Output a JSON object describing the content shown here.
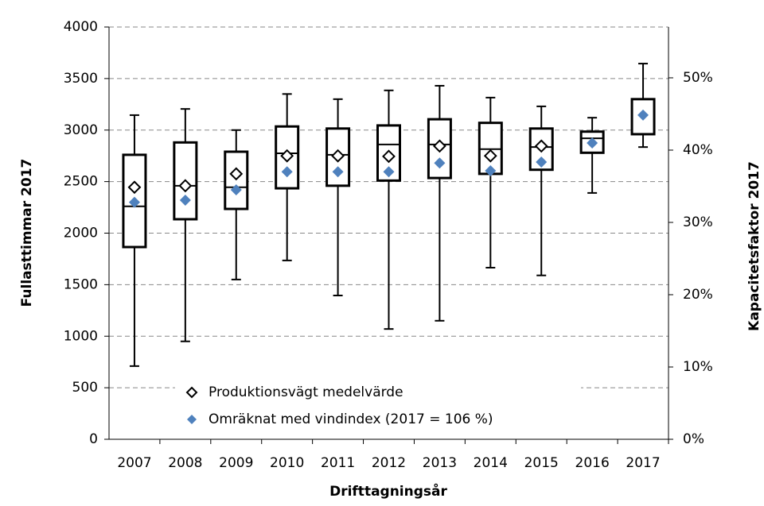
{
  "chart_data": {
    "type": "box",
    "x_label": "Drifttagningsår",
    "y_label": "Fullasttimmar 2017",
    "y2_label": "Kapacitetsfaktor  2017",
    "categories": [
      "2007",
      "2008",
      "2009",
      "2010",
      "2011",
      "2012",
      "2013",
      "2014",
      "2015",
      "2016",
      "2017"
    ],
    "boxes": {
      "low": [
        710,
        950,
        1550,
        1735,
        1395,
        1070,
        1150,
        1665,
        1590,
        2390,
        2835
      ],
      "q1": [
        1865,
        2135,
        2235,
        2435,
        2460,
        2510,
        2535,
        2575,
        2615,
        2780,
        2960
      ],
      "median": [
        2260,
        2460,
        2445,
        2775,
        2760,
        2860,
        2860,
        2815,
        2835,
        2920,
        null
      ],
      "q3": [
        2760,
        2880,
        2790,
        3035,
        3015,
        3045,
        3105,
        3070,
        3015,
        2985,
        3300
      ],
      "high": [
        3145,
        3205,
        3000,
        3350,
        3300,
        3385,
        3430,
        3315,
        3230,
        3120,
        3645
      ]
    },
    "series": [
      {
        "name": "Produktionsvägt medelvärde",
        "marker": "open-diamond",
        "color": "#000000",
        "values": [
          2445,
          2460,
          2575,
          2750,
          2750,
          2745,
          2845,
          2750,
          2845,
          null,
          null
        ]
      },
      {
        "name": "Omräknat med vindindex (2017 = 106 %)",
        "marker": "diamond",
        "color": "#4f81bd",
        "values": [
          2300,
          2320,
          2420,
          2595,
          2595,
          2595,
          2680,
          2605,
          2690,
          2875,
          3145
        ]
      }
    ],
    "ylim": [
      0,
      4000
    ],
    "yticks": [
      0,
      500,
      1000,
      1500,
      2000,
      2500,
      3000,
      3500,
      4000
    ],
    "y2lim": [
      0,
      57.03
    ],
    "y2ticks": [
      {
        "value": 0,
        "label": "0%"
      },
      {
        "value": 10,
        "label": "10%"
      },
      {
        "value": 20,
        "label": "20%"
      },
      {
        "value": 30,
        "label": "30%"
      },
      {
        "value": 40,
        "label": "40%"
      },
      {
        "value": 50,
        "label": "50%"
      }
    ],
    "grid": true
  }
}
